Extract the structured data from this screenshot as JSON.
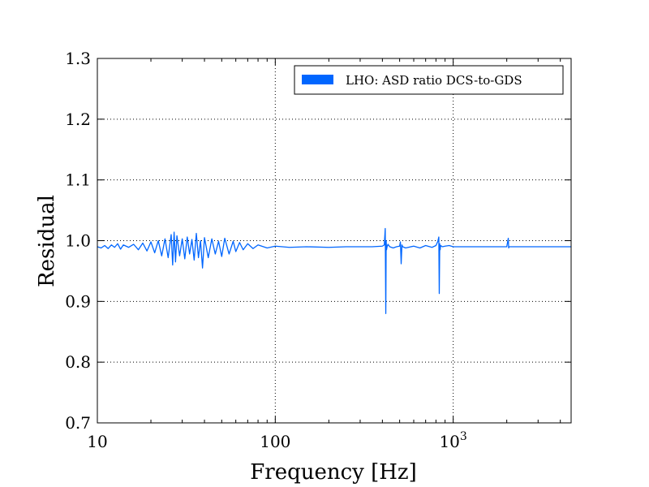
{
  "chart_data": {
    "type": "line",
    "xscale": "log",
    "xlabel": "Frequency [Hz]",
    "ylabel": "Residual",
    "xlim": [
      10,
      4600
    ],
    "ylim": [
      0.7,
      1.3
    ],
    "grid": true,
    "legend_position": "top-right",
    "x_ticks": [
      {
        "value": 10,
        "label": "10"
      },
      {
        "value": 100,
        "label": "100"
      },
      {
        "value": 1000,
        "label": "10",
        "sup": "3"
      }
    ],
    "y_ticks": [
      {
        "value": 0.7,
        "label": "0.7"
      },
      {
        "value": 0.8,
        "label": "0.8"
      },
      {
        "value": 0.9,
        "label": "0.9"
      },
      {
        "value": 1.0,
        "label": "1.0"
      },
      {
        "value": 1.1,
        "label": "1.1"
      },
      {
        "value": 1.2,
        "label": "1.2"
      },
      {
        "value": 1.3,
        "label": "1.3"
      }
    ],
    "series": [
      {
        "name": "LHO: ASD ratio DCS-to-GDS",
        "color": "#0066ff",
        "x": [
          10,
          10.5,
          11,
          11.5,
          12,
          12.5,
          13,
          13.5,
          14,
          15,
          16,
          17,
          18,
          19,
          20,
          21,
          22,
          23,
          24,
          25,
          26,
          26.5,
          27,
          27.5,
          28,
          29,
          30,
          31,
          32,
          33,
          34,
          35,
          36,
          37,
          38,
          39,
          40,
          42,
          44,
          46,
          48,
          50,
          52,
          55,
          58,
          60,
          63,
          66,
          70,
          75,
          80,
          90,
          100,
          120,
          150,
          200,
          250,
          300,
          350,
          400,
          410,
          415,
          418,
          420,
          422,
          425,
          430,
          440,
          460,
          480,
          500,
          505,
          510,
          515,
          520,
          540,
          600,
          650,
          700,
          760,
          800,
          820,
          830,
          835,
          840,
          845,
          850,
          870,
          900,
          950,
          1000,
          1500,
          2000,
          2040,
          2050,
          2060,
          2100,
          3000,
          4600
        ],
        "y": [
          0.99,
          0.988,
          0.992,
          0.987,
          0.993,
          0.989,
          0.995,
          0.986,
          0.993,
          0.989,
          0.994,
          0.985,
          0.996,
          0.983,
          0.998,
          0.98,
          1.0,
          0.975,
          1.003,
          0.972,
          1.01,
          0.96,
          1.014,
          0.965,
          1.008,
          0.975,
          1.003,
          0.97,
          1.006,
          0.978,
          1.002,
          0.968,
          1.012,
          0.972,
          1.0,
          0.955,
          1.005,
          0.972,
          1.003,
          0.978,
          0.999,
          0.974,
          1.004,
          0.978,
          0.999,
          0.982,
          0.997,
          0.985,
          0.995,
          0.987,
          0.993,
          0.988,
          0.991,
          0.989,
          0.99,
          0.989,
          0.99,
          0.99,
          0.99,
          0.991,
          0.993,
          1.02,
          0.88,
          1.0,
          0.985,
          0.99,
          0.994,
          0.99,
          0.988,
          0.99,
          0.991,
          0.998,
          0.962,
          0.993,
          0.99,
          0.988,
          0.991,
          0.988,
          0.992,
          0.989,
          0.992,
          0.999,
          1.006,
          0.913,
          0.995,
          0.985,
          0.992,
          0.99,
          0.991,
          0.992,
          0.99,
          0.99,
          0.99,
          1.004,
          0.988,
          0.99,
          0.99,
          0.99,
          0.99
        ]
      }
    ]
  }
}
